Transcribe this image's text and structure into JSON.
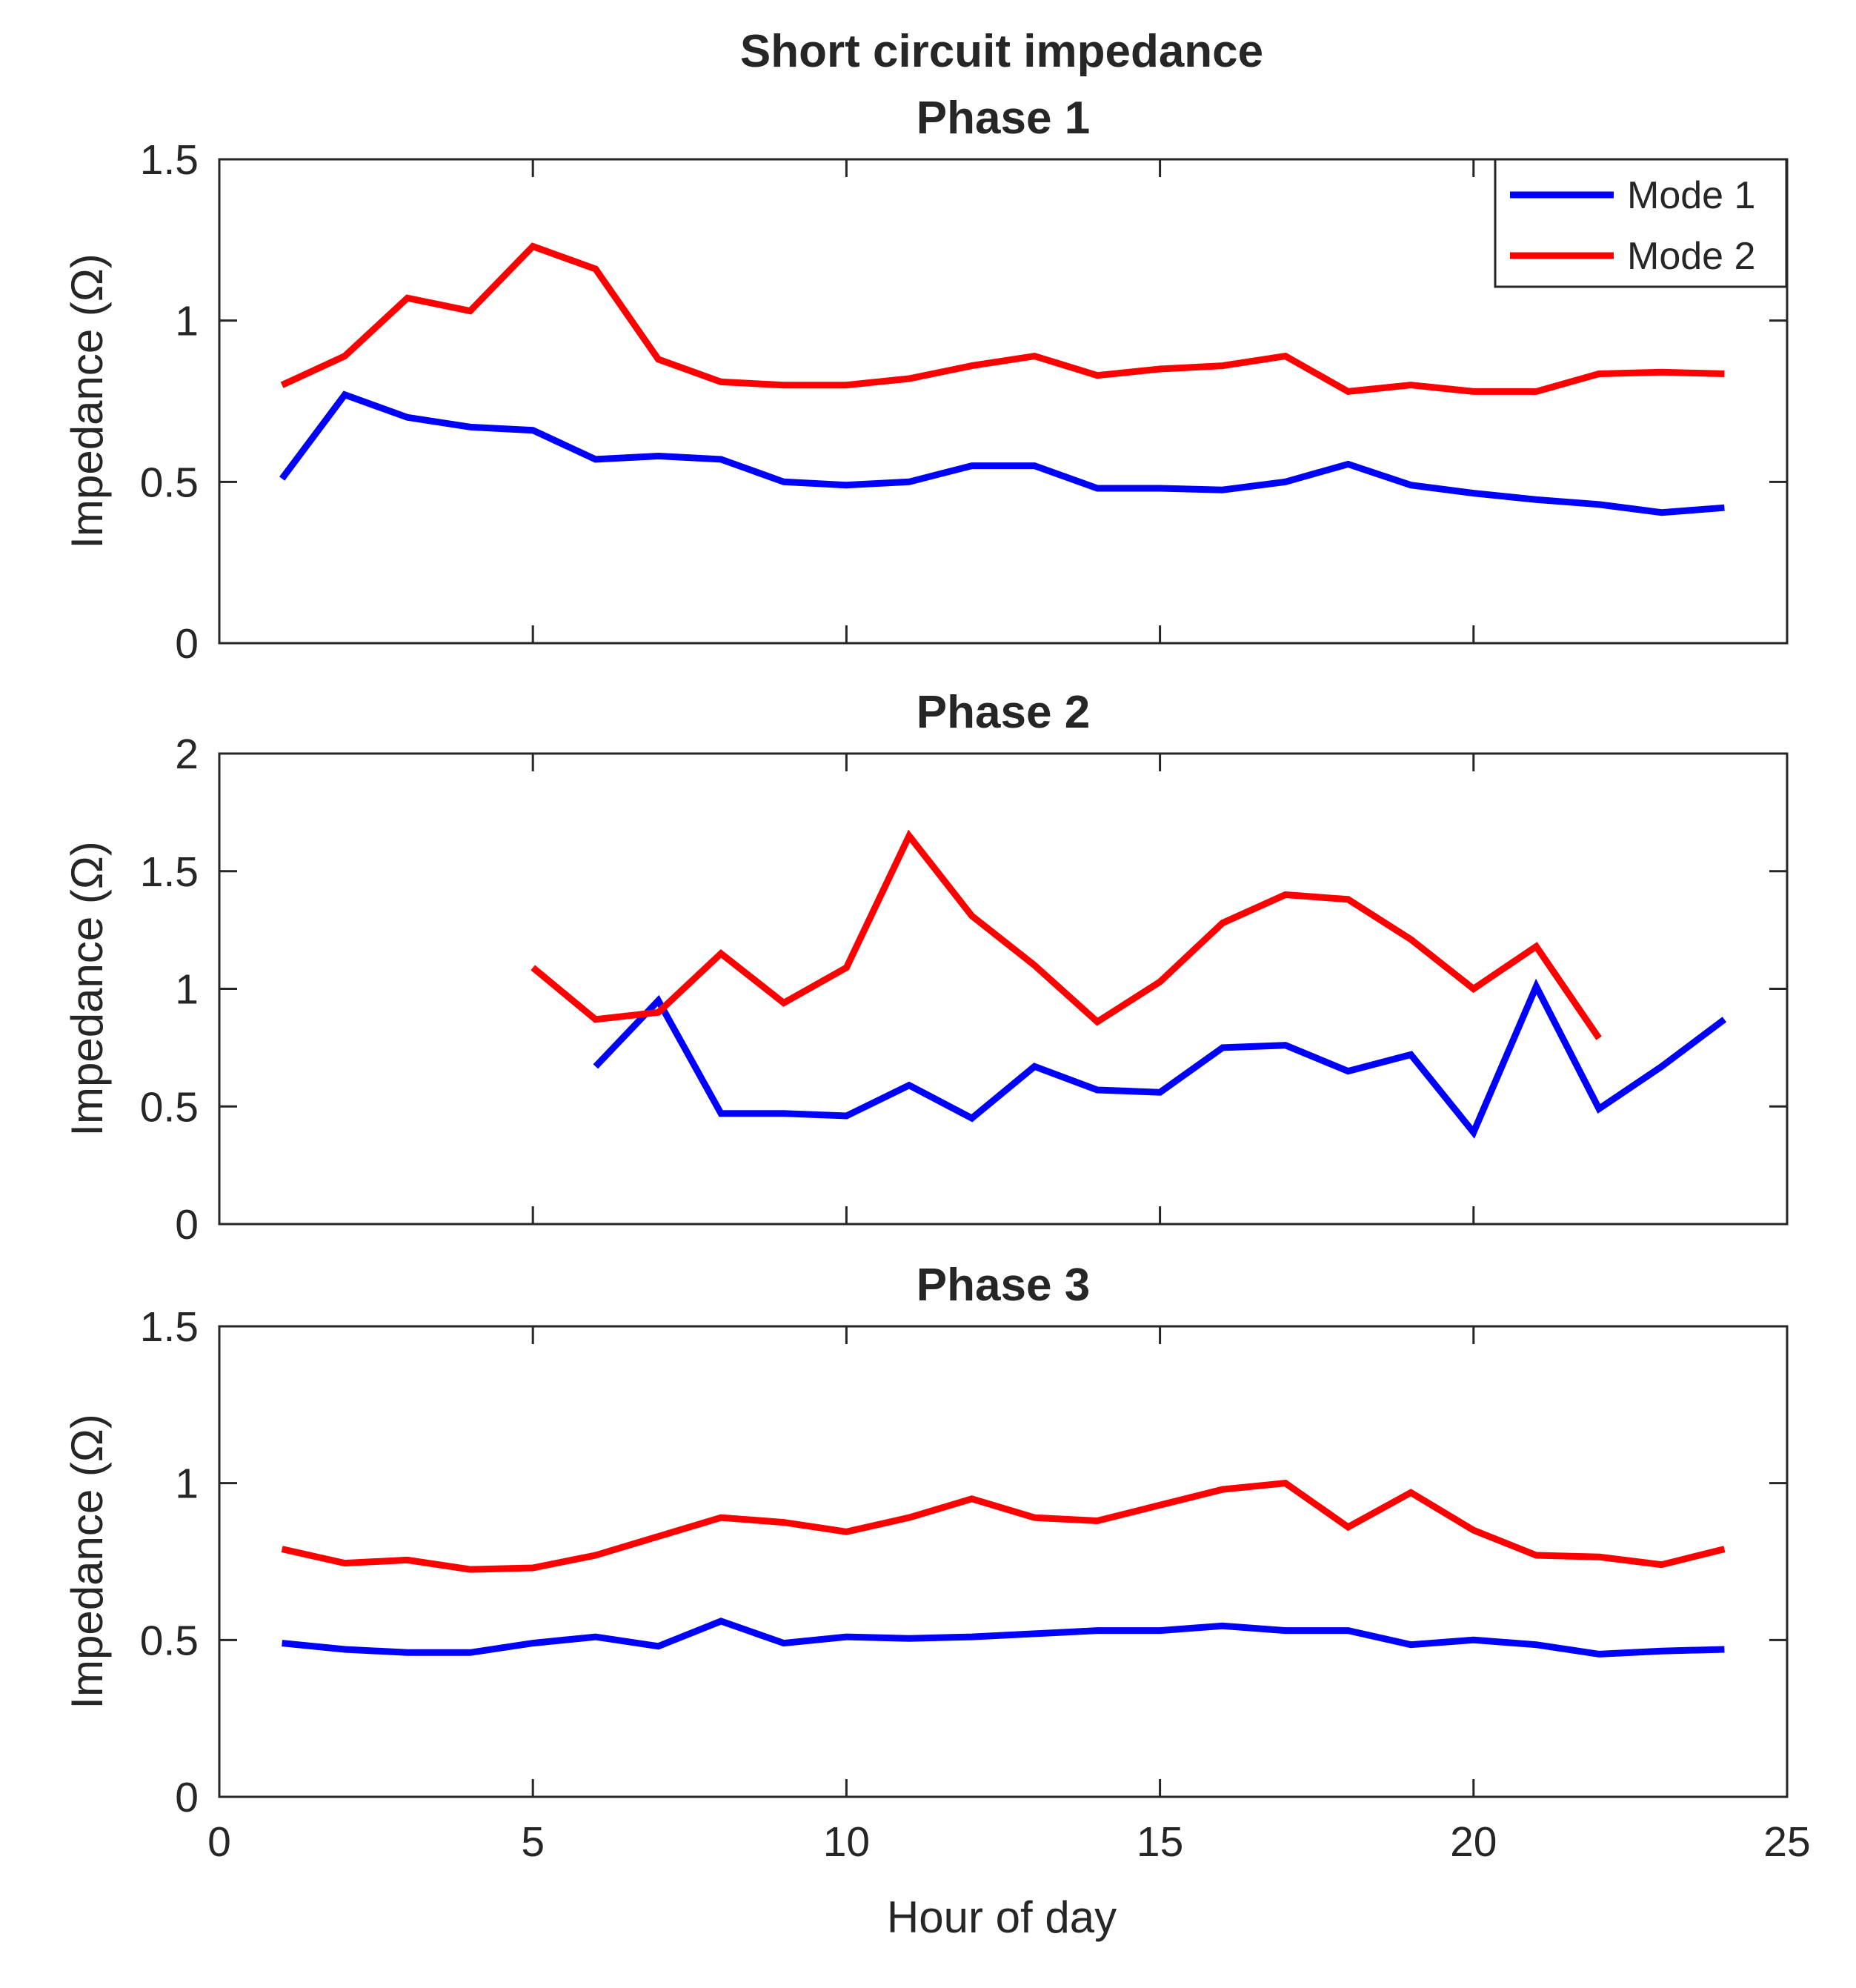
{
  "figure_title": "Short circuit impedance",
  "x_axis_label": "Hour of day",
  "legend": {
    "placement": "top-right of first panel",
    "entries": [
      {
        "label": "Mode 1",
        "color": "#0000ff"
      },
      {
        "label": "Mode 2",
        "color": "#ff0000"
      }
    ]
  },
  "chart_data": [
    {
      "type": "line",
      "title": "Phase 1",
      "xlabel": "",
      "ylabel": "Impedance (Ω)",
      "xlim": [
        0,
        25
      ],
      "ylim": [
        0,
        1.5
      ],
      "xticks": [
        0,
        5,
        10,
        15,
        20,
        25
      ],
      "xtick_labels": [
        "",
        "",
        "",
        "",
        "",
        ""
      ],
      "yticks": [
        0,
        0.5,
        1,
        1.5
      ],
      "ytick_labels": [
        "0",
        "0.5",
        "1",
        "1.5"
      ],
      "series": [
        {
          "name": "Mode 1",
          "color": "#0000ff",
          "x": [
            1,
            2,
            3,
            4,
            5,
            6,
            7,
            8,
            9,
            10,
            11,
            12,
            13,
            14,
            15,
            16,
            17,
            18,
            19,
            20,
            21,
            22,
            23,
            24
          ],
          "y": [
            0.51,
            0.77,
            0.7,
            0.67,
            0.66,
            0.57,
            0.58,
            0.57,
            0.5,
            0.49,
            0.5,
            0.55,
            0.55,
            0.48,
            0.48,
            0.475,
            0.5,
            0.555,
            0.49,
            0.465,
            0.445,
            0.43,
            0.405,
            0.42
          ]
        },
        {
          "name": "Mode 2",
          "color": "#ff0000",
          "x": [
            1,
            2,
            3,
            4,
            5,
            6,
            7,
            8,
            9,
            10,
            11,
            12,
            13,
            14,
            15,
            16,
            17,
            18,
            19,
            20,
            21,
            22,
            23,
            24
          ],
          "y": [
            0.8,
            0.89,
            1.07,
            1.03,
            1.23,
            1.16,
            0.88,
            0.81,
            0.8,
            0.8,
            0.82,
            0.86,
            0.89,
            0.83,
            0.85,
            0.86,
            0.89,
            0.78,
            0.8,
            0.78,
            0.78,
            0.835,
            0.84,
            0.835
          ]
        }
      ]
    },
    {
      "type": "line",
      "title": "Phase 2",
      "xlabel": "",
      "ylabel": "Impedance (Ω)",
      "xlim": [
        0,
        25
      ],
      "ylim": [
        0,
        2
      ],
      "xticks": [
        0,
        5,
        10,
        15,
        20,
        25
      ],
      "xtick_labels": [
        "",
        "",
        "",
        "",
        "",
        ""
      ],
      "yticks": [
        0,
        0.5,
        1,
        1.5,
        2
      ],
      "ytick_labels": [
        "0",
        "0.5",
        "1",
        "1.5",
        "2"
      ],
      "series": [
        {
          "name": "Mode 1",
          "color": "#0000ff",
          "x": [
            6,
            7,
            8,
            9,
            10,
            11,
            12,
            13,
            14,
            15,
            16,
            17,
            18,
            19,
            20,
            21,
            22,
            23,
            24
          ],
          "y": [
            0.67,
            0.95,
            0.47,
            0.47,
            0.46,
            0.59,
            0.45,
            0.67,
            0.57,
            0.56,
            0.75,
            0.76,
            0.65,
            0.72,
            0.39,
            1.01,
            0.49,
            0.67,
            0.87
          ]
        },
        {
          "name": "Mode 2",
          "color": "#ff0000",
          "x": [
            5,
            6,
            7,
            8,
            9,
            10,
            11,
            12,
            13,
            14,
            15,
            16,
            17,
            18,
            19,
            20,
            21,
            22
          ],
          "y": [
            1.09,
            0.87,
            0.9,
            1.15,
            0.94,
            1.09,
            1.65,
            1.31,
            1.1,
            0.86,
            1.03,
            1.28,
            1.4,
            1.38,
            1.21,
            1.0,
            1.18,
            0.79
          ]
        }
      ]
    },
    {
      "type": "line",
      "title": "Phase 3",
      "xlabel": "Hour of day",
      "ylabel": "Impedance (Ω)",
      "xlim": [
        0,
        25
      ],
      "ylim": [
        0,
        1.5
      ],
      "xticks": [
        0,
        5,
        10,
        15,
        20,
        25
      ],
      "xtick_labels": [
        "0",
        "5",
        "10",
        "15",
        "20",
        "25"
      ],
      "yticks": [
        0,
        0.5,
        1,
        1.5
      ],
      "ytick_labels": [
        "0",
        "0.5",
        "1",
        "1.5"
      ],
      "series": [
        {
          "name": "Mode 1",
          "color": "#0000ff",
          "x": [
            1,
            2,
            3,
            4,
            5,
            6,
            7,
            8,
            9,
            10,
            11,
            12,
            13,
            14,
            15,
            16,
            17,
            18,
            19,
            20,
            21,
            22,
            23,
            24
          ],
          "y": [
            0.49,
            0.47,
            0.46,
            0.46,
            0.49,
            0.51,
            0.48,
            0.56,
            0.49,
            0.51,
            0.505,
            0.51,
            0.52,
            0.53,
            0.53,
            0.545,
            0.53,
            0.53,
            0.485,
            0.5,
            0.485,
            0.455,
            0.465,
            0.47
          ]
        },
        {
          "name": "Mode 2",
          "color": "#ff0000",
          "x": [
            1,
            2,
            3,
            4,
            5,
            6,
            7,
            8,
            9,
            10,
            11,
            12,
            13,
            14,
            15,
            16,
            17,
            18,
            19,
            20,
            21,
            22,
            23,
            24
          ],
          "y": [
            0.79,
            0.745,
            0.755,
            0.725,
            0.73,
            0.77,
            0.83,
            0.89,
            0.875,
            0.845,
            0.89,
            0.95,
            0.89,
            0.88,
            0.93,
            0.98,
            1.0,
            0.86,
            0.97,
            0.85,
            0.77,
            0.765,
            0.74,
            0.79
          ]
        }
      ]
    }
  ]
}
